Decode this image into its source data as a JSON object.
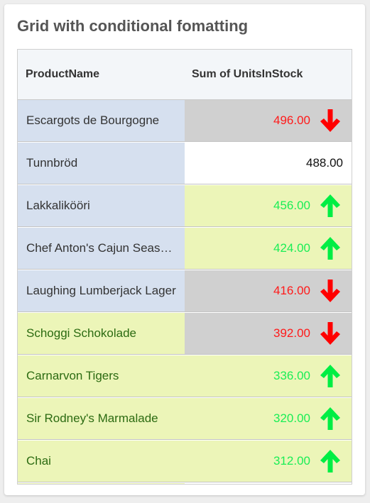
{
  "title": "Grid with conditional fomatting",
  "columns": {
    "product_name": "ProductName",
    "units": "Sum of UnitsInStock"
  },
  "colors": {
    "name_blue_bg": "#d6e0ef",
    "name_green_bg": "#ecf5b8",
    "name_green_text": "#2c6b12",
    "name_default_text": "#333333",
    "units_gray_bg": "#d0d0d0",
    "units_green_bg": "#ecf5b8",
    "units_white_bg": "#ffffff",
    "value_red": "#ff1a1a",
    "value_green": "#1aee55",
    "value_black": "#111111",
    "arrow_red": "#ff0000",
    "arrow_green": "#00ee44"
  },
  "rows": [
    {
      "name": "Escargots de Bourgogne",
      "value": "496.00",
      "name_style": "blue",
      "units_style": "gray",
      "value_color": "red",
      "arrow": "down"
    },
    {
      "name": "Tunnbröd",
      "value": "488.00",
      "name_style": "blue",
      "units_style": "white",
      "value_color": "black",
      "arrow": "none"
    },
    {
      "name": "Lakkalikööri",
      "value": "456.00",
      "name_style": "blue",
      "units_style": "green",
      "value_color": "green",
      "arrow": "up"
    },
    {
      "name": "Chef Anton's Cajun Seasoning",
      "value": "424.00",
      "name_style": "blue",
      "units_style": "green",
      "value_color": "green",
      "arrow": "up"
    },
    {
      "name": "Laughing Lumberjack Lager",
      "value": "416.00",
      "name_style": "blue",
      "units_style": "gray",
      "value_color": "red",
      "arrow": "down"
    },
    {
      "name": "Schoggi Schokolade",
      "value": "392.00",
      "name_style": "green",
      "units_style": "gray",
      "value_color": "red",
      "arrow": "down"
    },
    {
      "name": "Carnarvon Tigers",
      "value": "336.00",
      "name_style": "green",
      "units_style": "green",
      "value_color": "green",
      "arrow": "up"
    },
    {
      "name": "Sir Rodney's Marmalade",
      "value": "320.00",
      "name_style": "green",
      "units_style": "green",
      "value_color": "green",
      "arrow": "up"
    },
    {
      "name": "Chai",
      "value": "312.00",
      "name_style": "green",
      "units_style": "green",
      "value_color": "green",
      "arrow": "up"
    }
  ]
}
